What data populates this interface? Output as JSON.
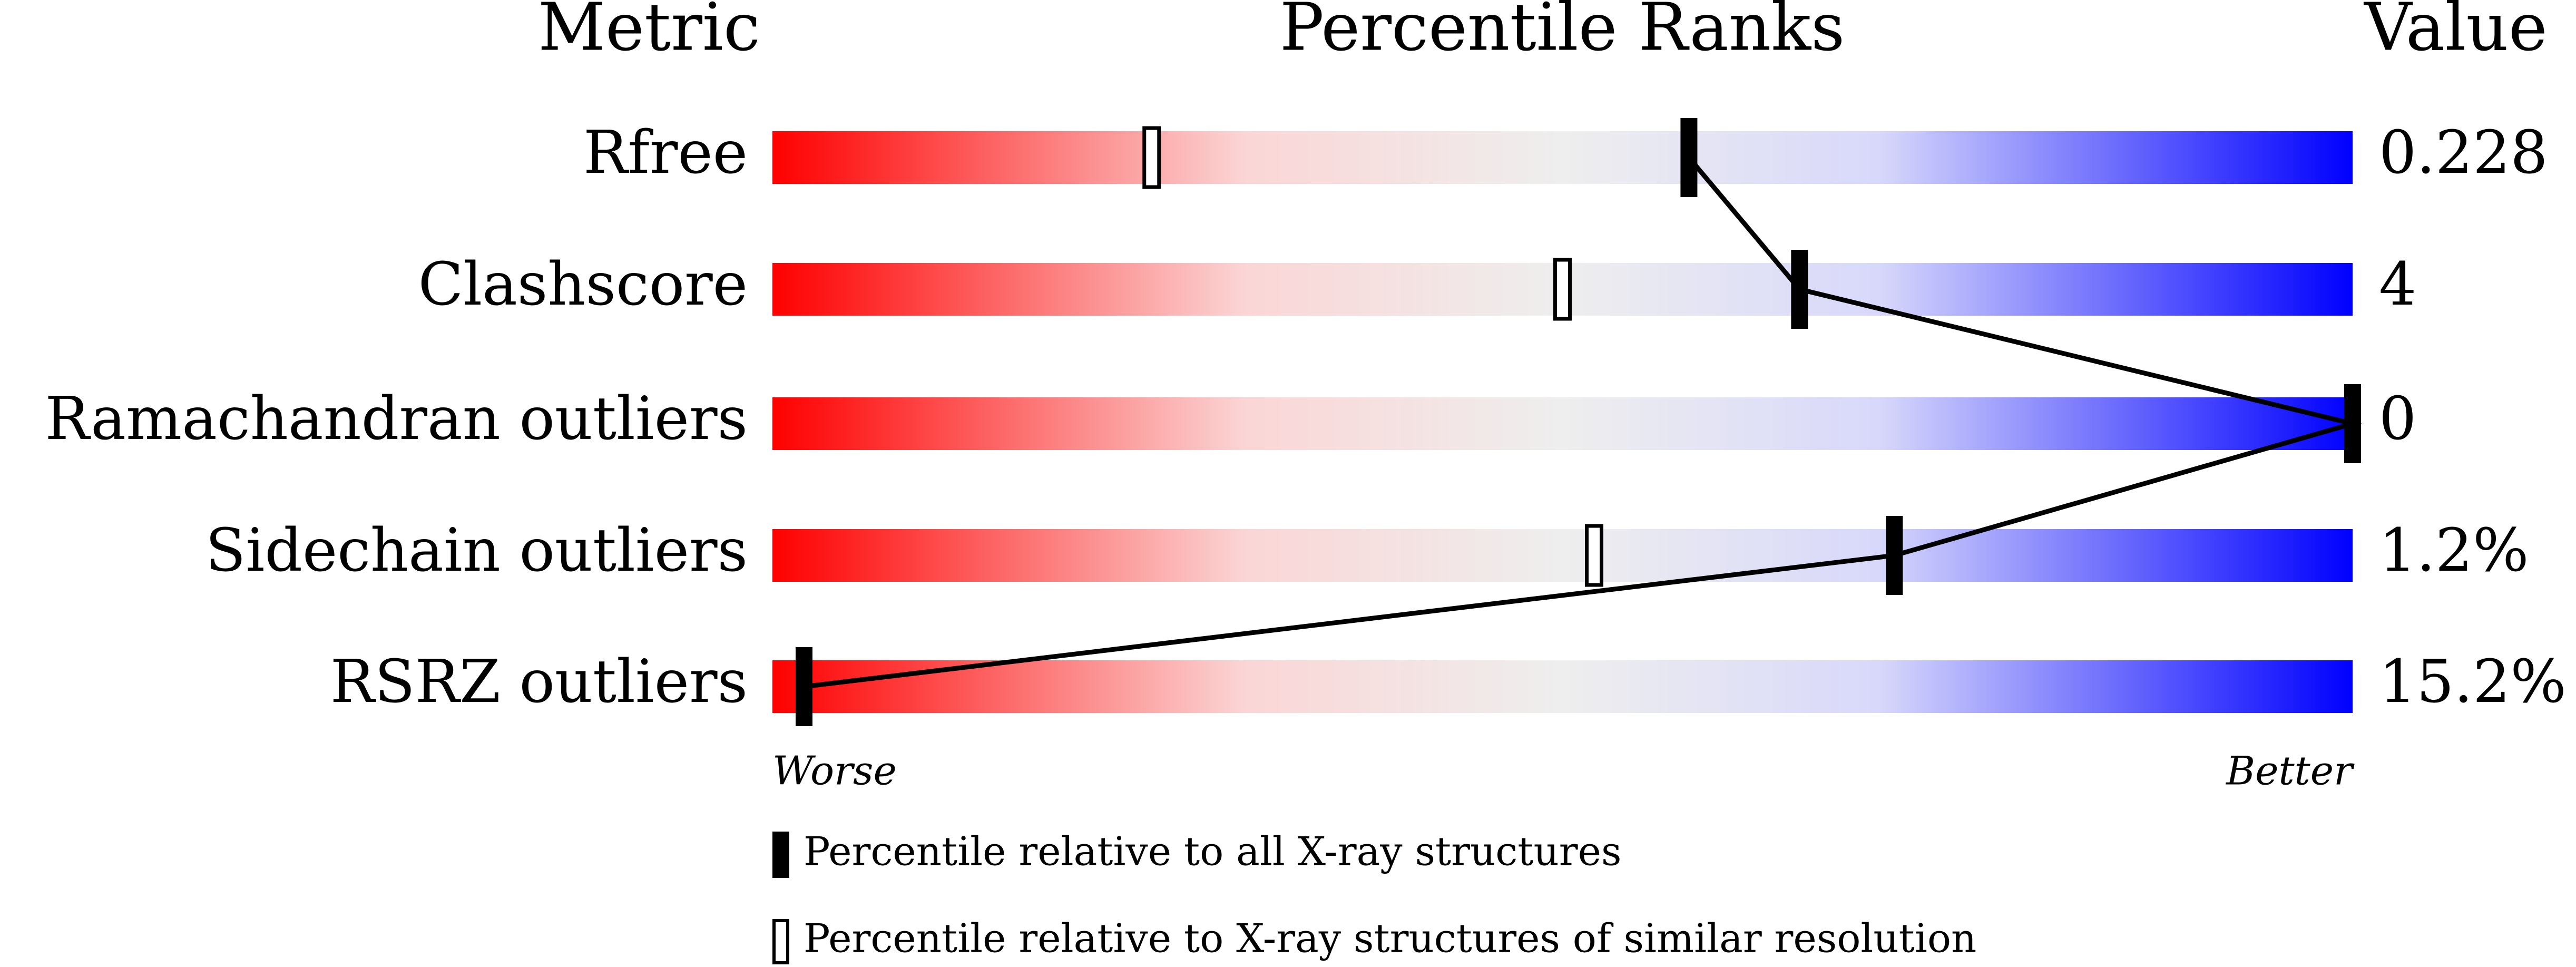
{
  "chart_data": {
    "type": "percentile",
    "headers": [
      "Metric",
      "Percentile Ranks",
      "Value"
    ],
    "categories": [
      "Rfree",
      "Clashscore",
      "Ramachandran outliers",
      "Sidechain outliers",
      "RSRZ outliers"
    ],
    "values": [
      0.228,
      4,
      0,
      1.2,
      15.2
    ],
    "value_labels": [
      "0.228",
      "4",
      "0",
      "1.2%",
      "15.2%"
    ],
    "xlim": [
      0,
      100
    ],
    "axis_labels": [
      "Worse",
      "Better"
    ],
    "series": [
      {
        "name": "Percentile relative to all X-ray structures",
        "color": "#000000",
        "values": [
          58,
          65,
          100,
          71,
          2
        ]
      },
      {
        "name": "Percentile relative to X-ray structures of similar resolution",
        "color": "#ffffff",
        "values": [
          24,
          50,
          null,
          52,
          null
        ]
      }
    ]
  }
}
